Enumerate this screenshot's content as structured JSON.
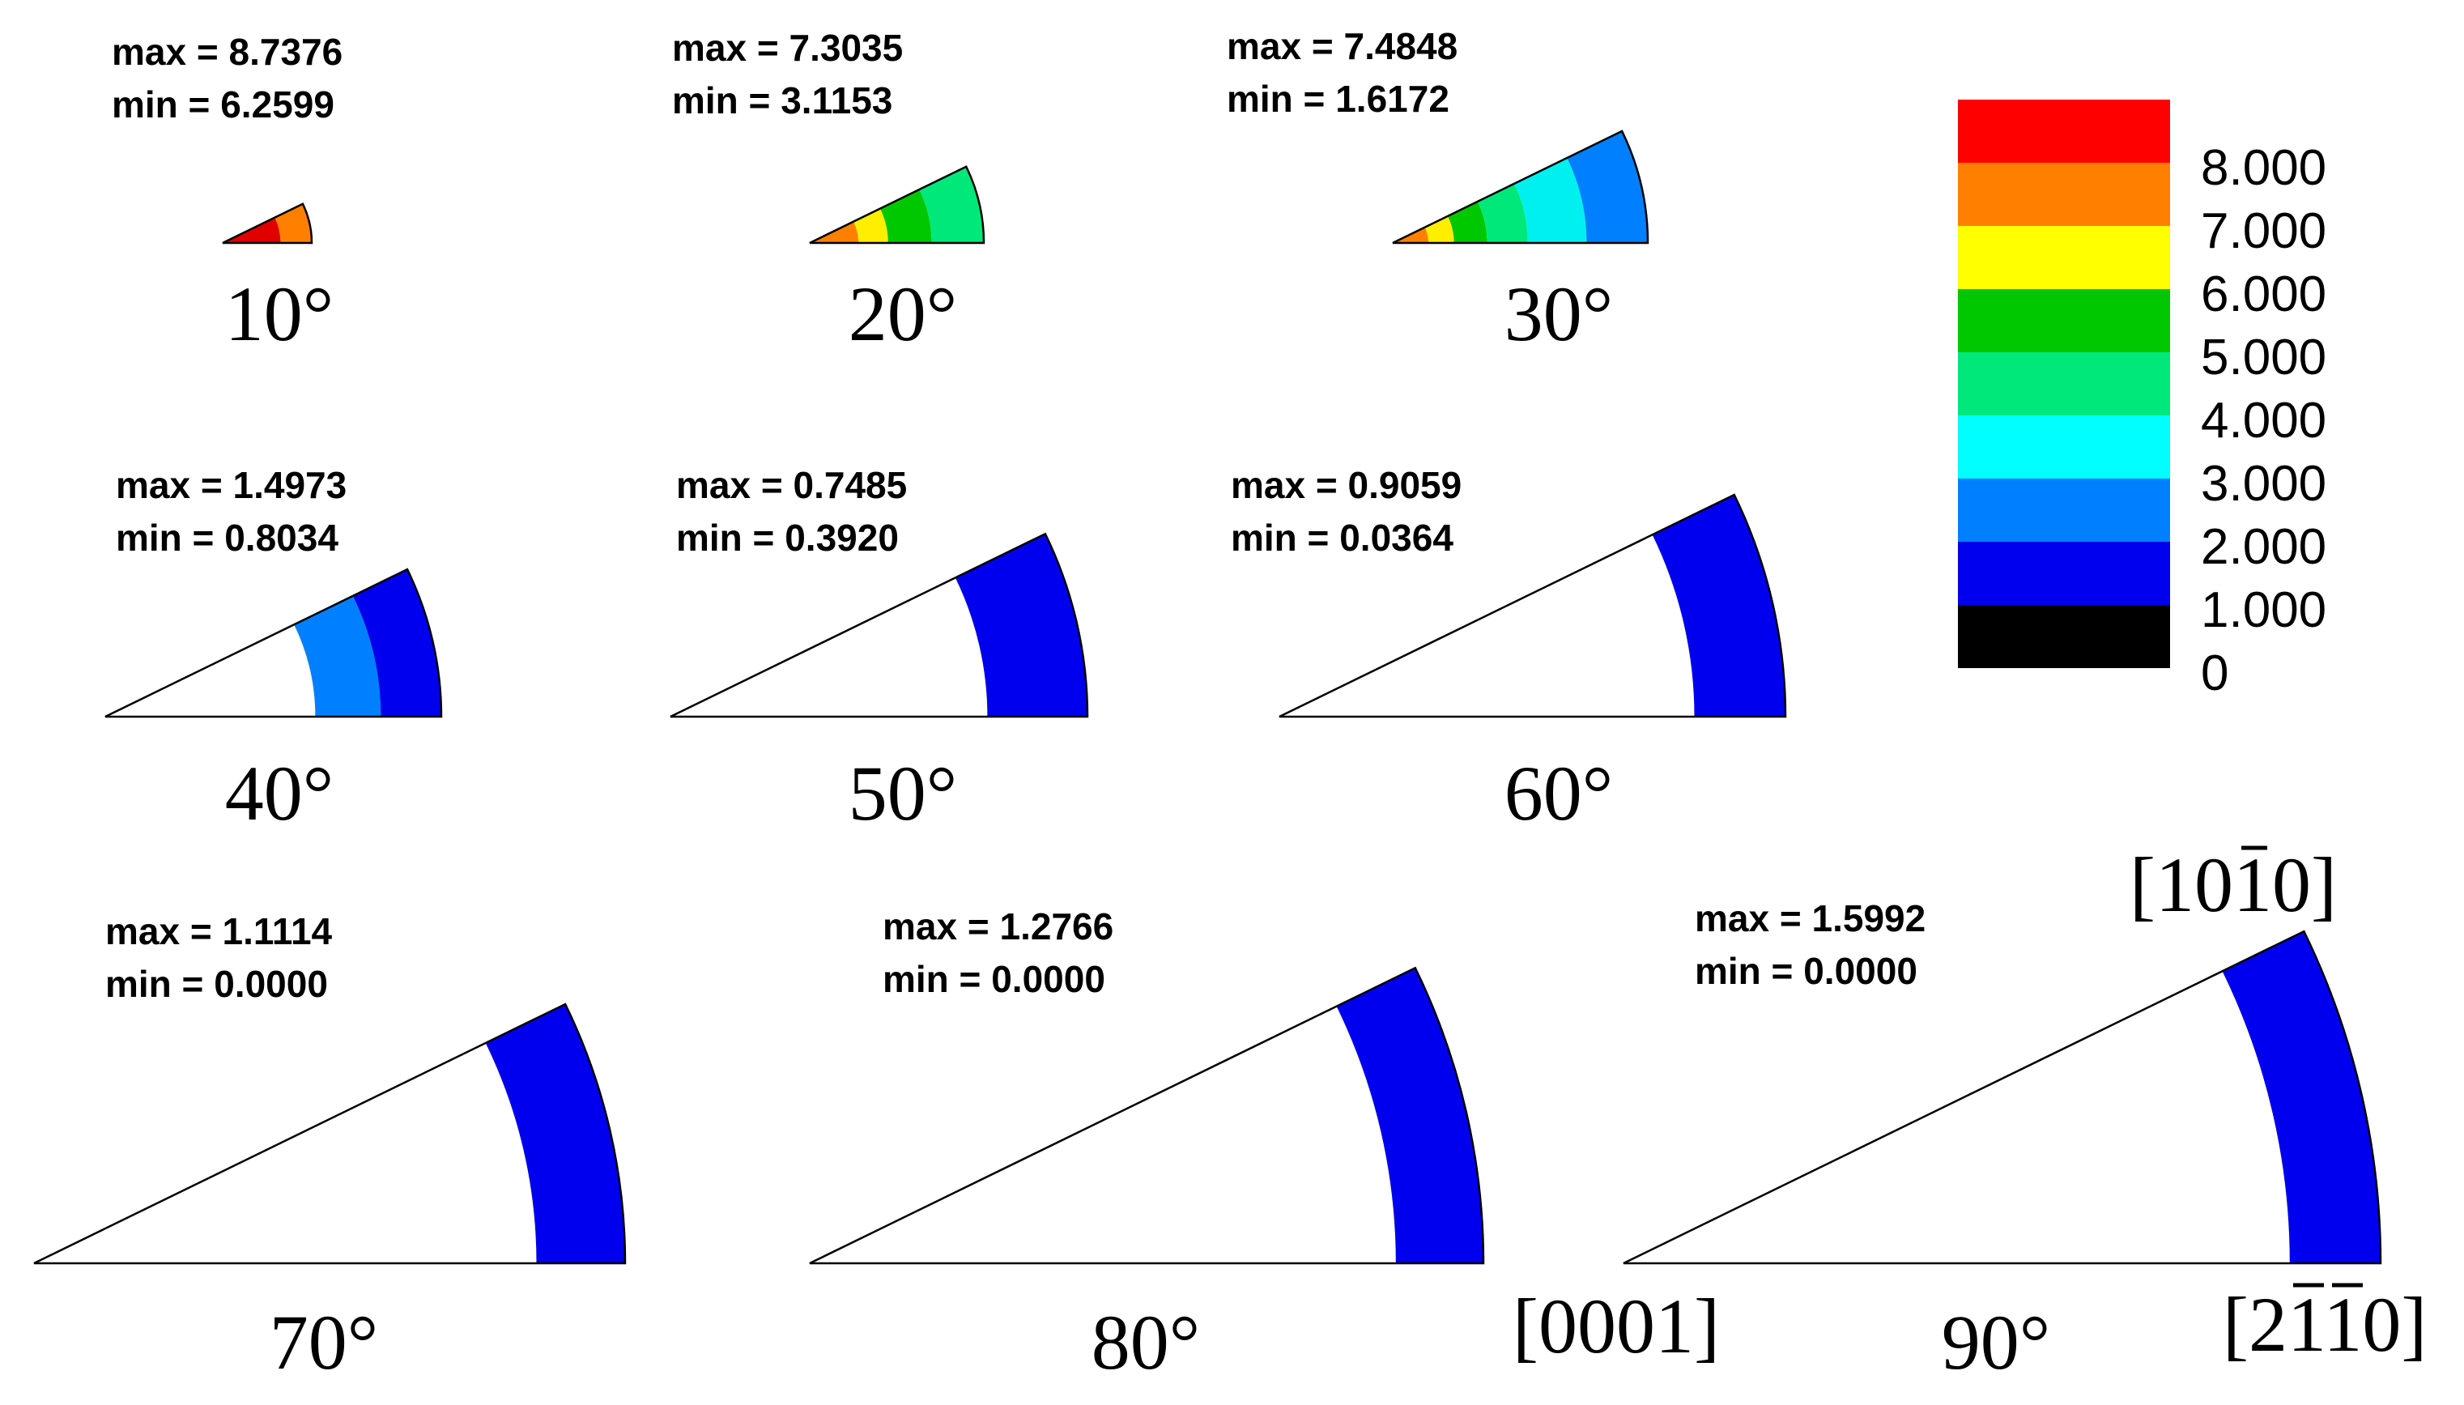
{
  "panels": [
    {
      "angle": "10°",
      "max": "max = 8.7376",
      "min": "min = 6.2599",
      "bands": [
        [
          "#e00000",
          0.65
        ],
        [
          "#ff8000",
          1.0
        ]
      ]
    },
    {
      "angle": "20°",
      "max": "max = 7.3035",
      "min": "min = 3.1153",
      "bands": [
        [
          "#ff8000",
          0.28
        ],
        [
          "#ffee00",
          0.45
        ],
        [
          "#00c800",
          0.7
        ],
        [
          "#00e87a",
          1.0
        ]
      ]
    },
    {
      "angle": "30°",
      "max": "max = 7.4848",
      "min": "min = 1.6172",
      "bands": [
        [
          "#ff8000",
          0.14
        ],
        [
          "#ffee00",
          0.24
        ],
        [
          "#00c800",
          0.37
        ],
        [
          "#00e87a",
          0.53
        ],
        [
          "#00f0f0",
          0.76
        ],
        [
          "#0080ff",
          1.0
        ]
      ]
    },
    {
      "angle": "40°",
      "max": "max = 1.4973",
      "min": "min = 0.8034",
      "bands": [
        [
          "#ffffff",
          0.625
        ],
        [
          "#0080ff",
          0.82
        ],
        [
          "#0000ee",
          1.0
        ]
      ]
    },
    {
      "angle": "50°",
      "max": "max = 0.7485",
      "min": "min = 0.3920",
      "bands": [
        [
          "#ffffff",
          0.76
        ],
        [
          "#0000ee",
          1.0
        ]
      ]
    },
    {
      "angle": "60°",
      "max": "max = 0.9059",
      "min": "min = 0.0364",
      "bands": [
        [
          "#ffffff",
          0.82
        ],
        [
          "#0000ee",
          1.0
        ]
      ]
    },
    {
      "angle": "70°",
      "max": "max = 1.1114",
      "min": "min = 0.0000",
      "bands": [
        [
          "#ffffff",
          0.85
        ],
        [
          "#0000ee",
          1.0
        ]
      ]
    },
    {
      "angle": "80°",
      "max": "max = 1.2766",
      "min": "min = 0.0000",
      "bands": [
        [
          "#ffffff",
          0.87
        ],
        [
          "#0000ee",
          1.0
        ]
      ]
    },
    {
      "angle": "90°",
      "max": "max = 1.5992",
      "min": "min = 0.0000",
      "bands": [
        [
          "#ffffff",
          0.88
        ],
        [
          "#0000ee",
          1.0
        ]
      ]
    }
  ],
  "legend": {
    "colors": [
      "#ff0000",
      "#ff8000",
      "#ffff00",
      "#00c800",
      "#00e87a",
      "#00ffff",
      "#0080ff",
      "#0000ee",
      "#000000"
    ],
    "ticks": [
      "8.000",
      "7.000",
      "6.000",
      "5.000",
      "4.000",
      "3.000",
      "2.000",
      "1.000",
      "0"
    ]
  },
  "directions": {
    "top": {
      "main": "[1010]",
      "overbar_digit": "1",
      "overbar_index": 2
    },
    "left": "[0001]",
    "right": {
      "main": "[2110]"
    }
  }
}
